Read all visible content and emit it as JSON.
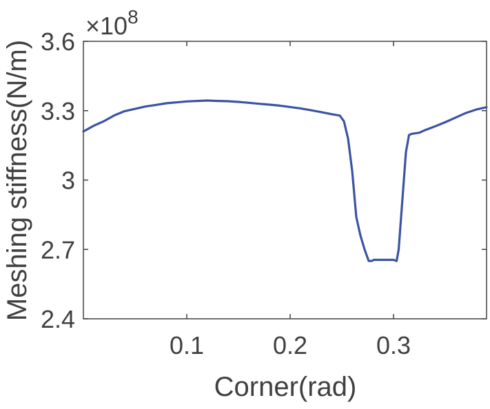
{
  "chart_data": {
    "type": "line",
    "title": "",
    "xlabel": "Corner(rad)",
    "ylabel": "Meshing stiffness(N/m)",
    "y_exponent_label": "×10",
    "y_exponent_power": "8",
    "xlim": [
      0.0,
      0.39
    ],
    "ylim": [
      2.4,
      3.6
    ],
    "xticks": [
      0.1,
      0.2,
      0.3
    ],
    "xtick_labels": [
      "0.1",
      "0.2",
      "0.3"
    ],
    "yticks": [
      2.4,
      2.7,
      3.0,
      3.3,
      3.6
    ],
    "ytick_labels": [
      "2.4",
      "2.7",
      "3",
      "3.3",
      "3.6"
    ],
    "grid": false,
    "colors": {
      "line": "#3a53a4",
      "axis": "#404040"
    },
    "series": [
      {
        "x": [
          0.0,
          0.01,
          0.02,
          0.03,
          0.04,
          0.05,
          0.06,
          0.07,
          0.08,
          0.09,
          0.1,
          0.11,
          0.12,
          0.13,
          0.14,
          0.15,
          0.16,
          0.17,
          0.18,
          0.19,
          0.2,
          0.21,
          0.22,
          0.23,
          0.24,
          0.248,
          0.252,
          0.256,
          0.26,
          0.264,
          0.268,
          0.272,
          0.276,
          0.279,
          0.281,
          0.29,
          0.3,
          0.303,
          0.305,
          0.308,
          0.312,
          0.315,
          0.318,
          0.325,
          0.33,
          0.34,
          0.35,
          0.36,
          0.37,
          0.38,
          0.39
        ],
        "y": [
          3.21,
          3.235,
          3.255,
          3.28,
          3.298,
          3.308,
          3.318,
          3.325,
          3.332,
          3.336,
          3.34,
          3.342,
          3.344,
          3.342,
          3.341,
          3.338,
          3.334,
          3.33,
          3.326,
          3.322,
          3.316,
          3.31,
          3.302,
          3.294,
          3.285,
          3.279,
          3.255,
          3.18,
          3.04,
          2.84,
          2.76,
          2.7,
          2.65,
          2.65,
          2.655,
          2.655,
          2.655,
          2.65,
          2.7,
          2.88,
          3.12,
          3.195,
          3.2,
          3.205,
          3.215,
          3.232,
          3.25,
          3.27,
          3.29,
          3.305,
          3.315
        ]
      }
    ]
  }
}
